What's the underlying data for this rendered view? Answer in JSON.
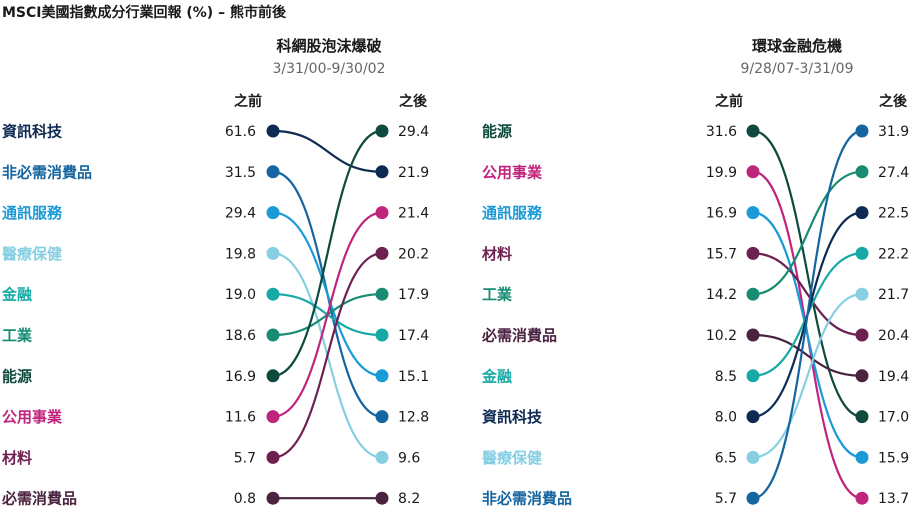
{
  "title": "MSCI美國指數成分行業回報 (%) – 熊市前後",
  "colors": {
    "資訊科技": "#0d2a52",
    "非必需消費品": "#1565a0",
    "通訊服務": "#1a9ad6",
    "醫療保健": "#86cfe3",
    "金融": "#17a9a6",
    "工業": "#178c72",
    "能源": "#0f4a3f",
    "公用事業": "#c0257e",
    "材料": "#6d2151",
    "必需消費品": "#4a2340"
  },
  "chart_data": [
    {
      "type": "slope",
      "title": "科網股泡沫爆破",
      "subtitle": "3/31/00-9/30/02",
      "before_label": "之前",
      "after_label": "之後",
      "categories": [
        "資訊科技",
        "非必需消費品",
        "通訊服務",
        "醫療保健",
        "金融",
        "工業",
        "能源",
        "公用事業",
        "材料",
        "必需消費品"
      ],
      "before": [
        61.6,
        31.5,
        29.4,
        19.8,
        19.0,
        18.6,
        16.9,
        11.6,
        5.7,
        0.8
      ],
      "after": [
        21.9,
        12.8,
        15.1,
        9.6,
        17.4,
        17.9,
        29.4,
        21.4,
        20.2,
        8.2
      ],
      "before_display": [
        "61.6",
        "31.5",
        "29.4",
        "19.8",
        "19.0",
        "18.6",
        "16.9",
        "11.6",
        "5.7",
        "0.8"
      ],
      "after_display": [
        "21.9",
        "12.8",
        "15.1",
        "9.6",
        "17.4",
        "17.9",
        "29.4",
        "21.4",
        "20.2",
        "8.2"
      ]
    },
    {
      "type": "slope",
      "title": "環球金融危機",
      "subtitle": "9/28/07-3/31/09",
      "before_label": "之前",
      "after_label": "之後",
      "categories": [
        "能源",
        "公用事業",
        "通訊服務",
        "材料",
        "工業",
        "必需消費品",
        "金融",
        "資訊科技",
        "醫療保健",
        "非必需消費品"
      ],
      "before": [
        31.6,
        19.9,
        16.9,
        15.7,
        14.2,
        10.2,
        8.5,
        8.0,
        6.5,
        5.7
      ],
      "after": [
        17.0,
        13.7,
        15.9,
        20.4,
        27.4,
        19.4,
        22.2,
        22.5,
        21.7,
        31.9
      ],
      "before_display": [
        "31.6",
        "19.9",
        "16.9",
        "15.7",
        "14.2",
        "10.2",
        "8.5",
        "8.0",
        "6.5",
        "5.7"
      ],
      "after_display": [
        "17.0",
        "13.7",
        "15.9",
        "20.4",
        "27.4",
        "19.4",
        "22.2",
        "22.5",
        "21.7",
        "31.9"
      ]
    }
  ]
}
